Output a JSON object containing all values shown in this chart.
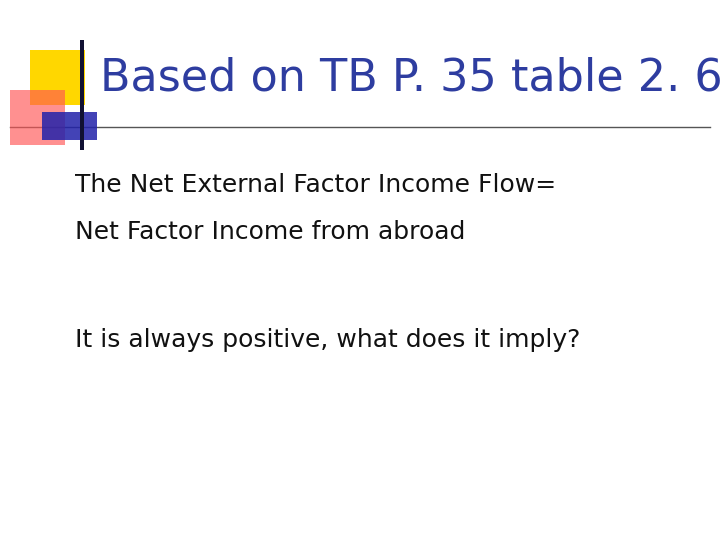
{
  "title": "Based on TB P. 35 table 2. 6",
  "title_color": "#2E3DA0",
  "title_fontsize": 32,
  "line1": "The Net External Factor Income Flow=",
  "line2": "Net Factor Income from abroad",
  "line3": "It is always positive, what does it imply?",
  "body_fontsize": 18,
  "body_color": "#111111",
  "background_color": "#FFFFFF",
  "accent_yellow": "#FFD700",
  "accent_red": "#FF5555",
  "accent_blue": "#2222AA",
  "separator_color": "#555555"
}
